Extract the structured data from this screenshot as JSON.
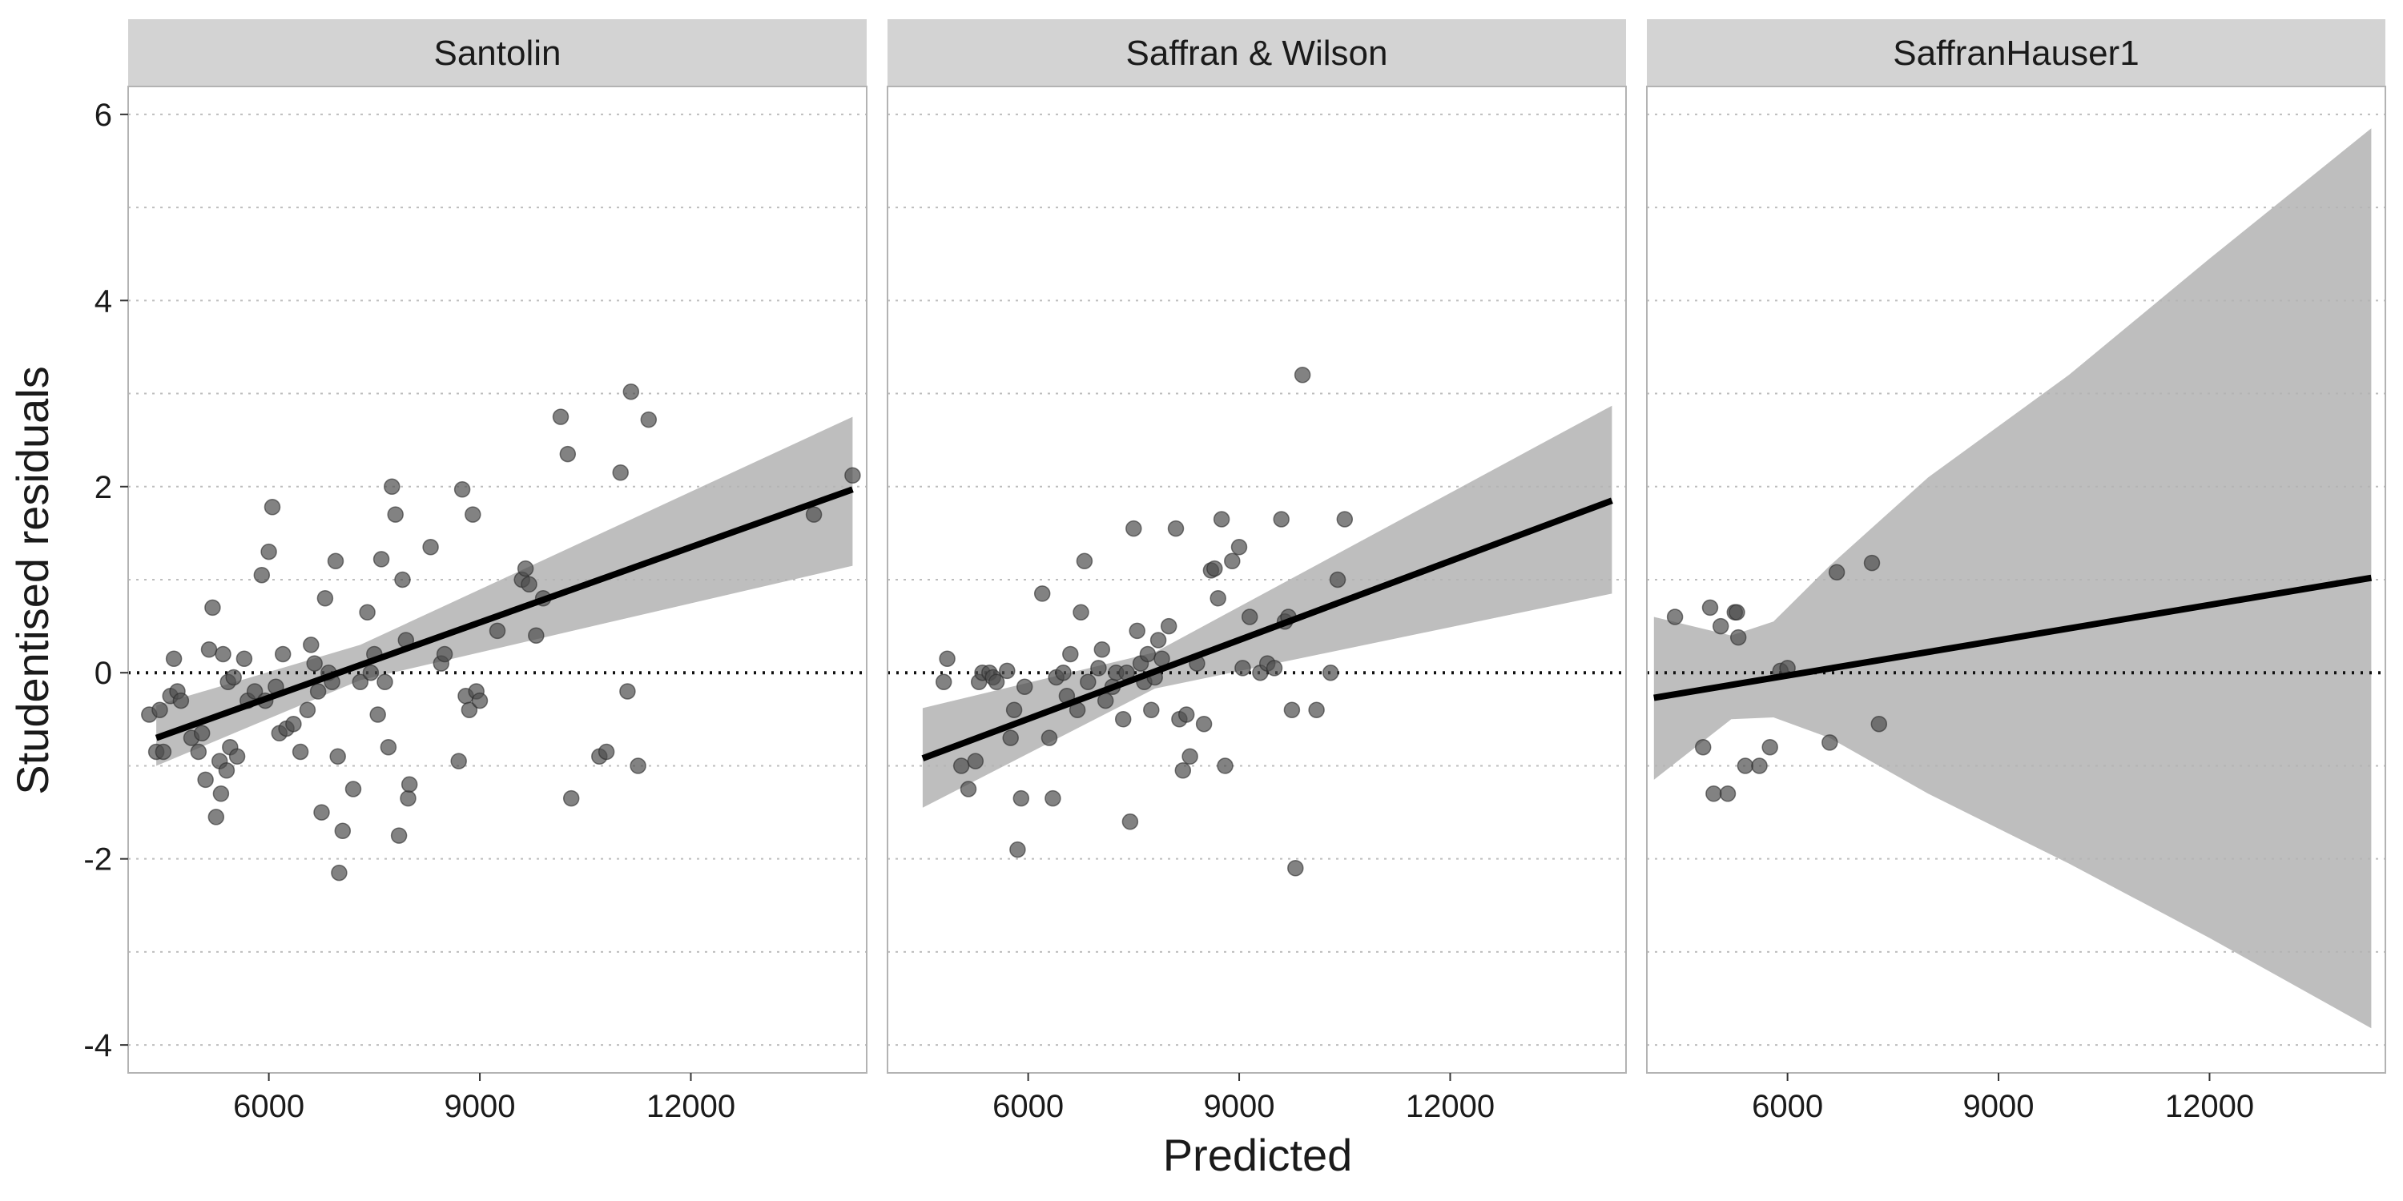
{
  "chart_data": {
    "type": "scatter",
    "xlabel": "Predicted",
    "ylabel": "Studentised residuals",
    "xlim": [
      4000,
      14500
    ],
    "ylim": [
      -4.3,
      6.3
    ],
    "x_ticks": [
      6000,
      9000,
      12000
    ],
    "y_ticks": [
      -4,
      -2,
      0,
      2,
      4,
      6
    ],
    "grid": "dotted horizontal",
    "reference_line_y": 0,
    "colors": {
      "point": "#4d4d4d",
      "fit_line": "#000000",
      "ribbon": "#b3b3b3",
      "strip": "#d3d3d3",
      "panel_border": "#b3b3b3",
      "grid": "#bdbdbd"
    },
    "panels": [
      {
        "name": "Santolin",
        "fit": {
          "x": [
            4400,
            14300
          ],
          "y": [
            -0.7,
            1.97
          ]
        },
        "ribbon": {
          "x": [
            4400,
            7300,
            14300
          ],
          "lower": [
            -1.0,
            -0.08,
            1.15
          ],
          "upper": [
            -0.35,
            0.3,
            2.75
          ]
        },
        "points": [
          [
            4300,
            -0.45
          ],
          [
            4400,
            -0.85
          ],
          [
            4450,
            -0.4
          ],
          [
            4500,
            -0.85
          ],
          [
            4600,
            -0.25
          ],
          [
            4650,
            0.15
          ],
          [
            4700,
            -0.2
          ],
          [
            4750,
            -0.3
          ],
          [
            4900,
            -0.7
          ],
          [
            5000,
            -0.85
          ],
          [
            5050,
            -0.65
          ],
          [
            5100,
            -1.15
          ],
          [
            5150,
            0.25
          ],
          [
            5200,
            0.7
          ],
          [
            5250,
            -1.55
          ],
          [
            5300,
            -0.95
          ],
          [
            5320,
            -1.3
          ],
          [
            5350,
            0.2
          ],
          [
            5400,
            -1.05
          ],
          [
            5420,
            -0.1
          ],
          [
            5450,
            -0.8
          ],
          [
            5500,
            -0.05
          ],
          [
            5550,
            -0.9
          ],
          [
            5650,
            0.15
          ],
          [
            5700,
            -0.3
          ],
          [
            5800,
            -0.2
          ],
          [
            5900,
            1.05
          ],
          [
            5950,
            -0.3
          ],
          [
            6000,
            1.3
          ],
          [
            6050,
            1.78
          ],
          [
            6100,
            -0.15
          ],
          [
            6150,
            -0.65
          ],
          [
            6200,
            0.2
          ],
          [
            6250,
            -0.6
          ],
          [
            6350,
            -0.55
          ],
          [
            6450,
            -0.85
          ],
          [
            6550,
            -0.4
          ],
          [
            6600,
            0.3
          ],
          [
            6650,
            0.1
          ],
          [
            6700,
            -0.2
          ],
          [
            6750,
            -1.5
          ],
          [
            6800,
            0.8
          ],
          [
            6850,
            0.0
          ],
          [
            6900,
            -0.1
          ],
          [
            6950,
            1.2
          ],
          [
            6980,
            -0.9
          ],
          [
            7000,
            -2.15
          ],
          [
            7050,
            -1.7
          ],
          [
            7200,
            -1.25
          ],
          [
            7300,
            -0.1
          ],
          [
            7400,
            0.65
          ],
          [
            7450,
            0.0
          ],
          [
            7500,
            0.2
          ],
          [
            7550,
            -0.45
          ],
          [
            7600,
            1.22
          ],
          [
            7650,
            -0.1
          ],
          [
            7700,
            -0.8
          ],
          [
            7750,
            2.0
          ],
          [
            7800,
            1.7
          ],
          [
            7850,
            -1.75
          ],
          [
            7900,
            1.0
          ],
          [
            7950,
            0.35
          ],
          [
            7980,
            -1.35
          ],
          [
            8000,
            -1.2
          ],
          [
            8300,
            1.35
          ],
          [
            8450,
            0.1
          ],
          [
            8500,
            0.2
          ],
          [
            8700,
            -0.95
          ],
          [
            8750,
            1.97
          ],
          [
            8800,
            -0.25
          ],
          [
            8850,
            -0.4
          ],
          [
            8900,
            1.7
          ],
          [
            8950,
            -0.2
          ],
          [
            9000,
            -0.3
          ],
          [
            9250,
            0.45
          ],
          [
            9600,
            1.0
          ],
          [
            9650,
            1.12
          ],
          [
            9700,
            0.95
          ],
          [
            9800,
            0.4
          ],
          [
            9900,
            0.8
          ],
          [
            10150,
            2.75
          ],
          [
            10250,
            2.35
          ],
          [
            10300,
            -1.35
          ],
          [
            10700,
            -0.9
          ],
          [
            10800,
            -0.85
          ],
          [
            11000,
            2.15
          ],
          [
            11100,
            -0.2
          ],
          [
            11150,
            3.02
          ],
          [
            11250,
            -1.0
          ],
          [
            11400,
            2.72
          ],
          [
            13750,
            1.7
          ],
          [
            14300,
            2.12
          ]
        ]
      },
      {
        "name": "Saffran & Wilson",
        "fit": {
          "x": [
            4500,
            14300
          ],
          "y": [
            -0.92,
            1.85
          ]
        },
        "ribbon": {
          "x": [
            4500,
            7800,
            14300
          ],
          "lower": [
            -1.45,
            -0.17,
            0.85
          ],
          "upper": [
            -0.38,
            0.22,
            2.87
          ]
        },
        "points": [
          [
            4800,
            -0.1
          ],
          [
            4850,
            0.15
          ],
          [
            5050,
            -1.0
          ],
          [
            5150,
            -1.25
          ],
          [
            5250,
            -0.95
          ],
          [
            5300,
            -0.1
          ],
          [
            5350,
            0.0
          ],
          [
            5450,
            0.0
          ],
          [
            5500,
            -0.05
          ],
          [
            5550,
            -0.1
          ],
          [
            5700,
            0.02
          ],
          [
            5750,
            -0.7
          ],
          [
            5800,
            -0.4
          ],
          [
            5850,
            -1.9
          ],
          [
            5900,
            -1.35
          ],
          [
            5950,
            -0.15
          ],
          [
            6200,
            0.85
          ],
          [
            6300,
            -0.7
          ],
          [
            6350,
            -1.35
          ],
          [
            6400,
            -0.05
          ],
          [
            6500,
            0.0
          ],
          [
            6550,
            -0.25
          ],
          [
            6600,
            0.2
          ],
          [
            6700,
            -0.4
          ],
          [
            6750,
            0.65
          ],
          [
            6800,
            1.2
          ],
          [
            6850,
            -0.1
          ],
          [
            7000,
            0.05
          ],
          [
            7050,
            0.25
          ],
          [
            7100,
            -0.3
          ],
          [
            7200,
            -0.15
          ],
          [
            7250,
            0.0
          ],
          [
            7350,
            -0.5
          ],
          [
            7400,
            0.0
          ],
          [
            7450,
            -1.6
          ],
          [
            7500,
            1.55
          ],
          [
            7550,
            0.45
          ],
          [
            7600,
            0.1
          ],
          [
            7650,
            -0.1
          ],
          [
            7700,
            0.2
          ],
          [
            7750,
            -0.4
          ],
          [
            7800,
            -0.05
          ],
          [
            7850,
            0.35
          ],
          [
            7900,
            0.15
          ],
          [
            8000,
            0.5
          ],
          [
            8100,
            1.55
          ],
          [
            8150,
            -0.5
          ],
          [
            8200,
            -1.05
          ],
          [
            8250,
            -0.45
          ],
          [
            8300,
            -0.9
          ],
          [
            8400,
            0.1
          ],
          [
            8500,
            -0.55
          ],
          [
            8600,
            1.1
          ],
          [
            8650,
            1.12
          ],
          [
            8700,
            0.8
          ],
          [
            8750,
            1.65
          ],
          [
            8800,
            -1.0
          ],
          [
            8900,
            1.2
          ],
          [
            9000,
            1.35
          ],
          [
            9050,
            0.05
          ],
          [
            9150,
            0.6
          ],
          [
            9300,
            0.0
          ],
          [
            9400,
            0.1
          ],
          [
            9500,
            0.05
          ],
          [
            9600,
            1.65
          ],
          [
            9650,
            0.55
          ],
          [
            9700,
            0.6
          ],
          [
            9750,
            -0.4
          ],
          [
            9800,
            -2.1
          ],
          [
            9900,
            3.2
          ],
          [
            10100,
            -0.4
          ],
          [
            10300,
            0.0
          ],
          [
            10400,
            1.0
          ],
          [
            10500,
            1.65
          ]
        ]
      },
      {
        "name": "SaffranHauser1",
        "fit": {
          "x": [
            4100,
            14300
          ],
          "y": [
            -0.27,
            1.02
          ]
        },
        "ribbon": {
          "x": [
            4100,
            5200,
            5800,
            6600,
            8000,
            10000,
            12000,
            14300
          ],
          "lower": [
            -1.15,
            -0.5,
            -0.48,
            -0.7,
            -1.3,
            -2.05,
            -2.85,
            -3.82
          ],
          "upper": [
            0.6,
            0.4,
            0.55,
            1.15,
            2.1,
            3.2,
            4.45,
            5.85
          ]
        },
        "points": [
          [
            4400,
            0.6
          ],
          [
            4800,
            -0.8
          ],
          [
            4900,
            0.7
          ],
          [
            4950,
            -1.3
          ],
          [
            5050,
            0.5
          ],
          [
            5150,
            -1.3
          ],
          [
            5250,
            0.65
          ],
          [
            5280,
            0.65
          ],
          [
            5300,
            0.38
          ],
          [
            5400,
            -1.0
          ],
          [
            5600,
            -1.0
          ],
          [
            5750,
            -0.8
          ],
          [
            5900,
            0.02
          ],
          [
            6000,
            0.05
          ],
          [
            6600,
            -0.75
          ],
          [
            6700,
            1.08
          ],
          [
            7200,
            1.18
          ],
          [
            7300,
            -0.55
          ]
        ]
      }
    ]
  }
}
